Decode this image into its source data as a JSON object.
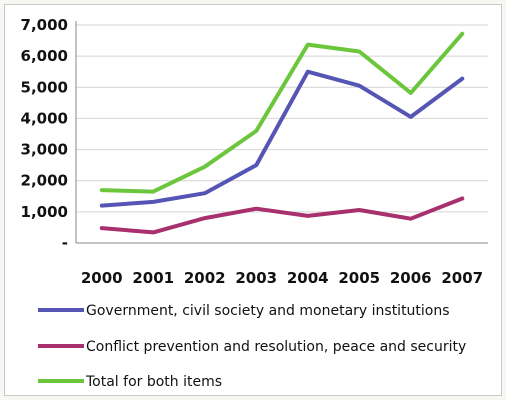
{
  "chart_data": {
    "type": "line",
    "x": [
      "2000",
      "2001",
      "2002",
      "2003",
      "2004",
      "2005",
      "2006",
      "2007"
    ],
    "ylim": [
      0,
      7000
    ],
    "yticks": [
      0,
      1000,
      2000,
      3000,
      4000,
      5000,
      6000,
      7000
    ],
    "ytick_labels": [
      "-",
      "1,000",
      "2,000",
      "3,000",
      "4,000",
      "5,000",
      "6,000",
      "7,000"
    ],
    "grid": true,
    "legend_position": "bottom",
    "series": [
      {
        "name": "Government, civil society and monetary institutions",
        "color": "#5555b5",
        "values": [
          1200,
          1320,
          1600,
          2500,
          5500,
          5050,
          4050,
          5280
        ]
      },
      {
        "name": "Conflict prevention and resolution, peace and security",
        "color": "#a8306e",
        "values": [
          480,
          340,
          800,
          1100,
          870,
          1060,
          780,
          1430
        ]
      },
      {
        "name": "Total for both items",
        "color": "#6cc63c",
        "values": [
          1700,
          1650,
          2450,
          3600,
          6370,
          6150,
          4820,
          6720
        ]
      }
    ]
  }
}
